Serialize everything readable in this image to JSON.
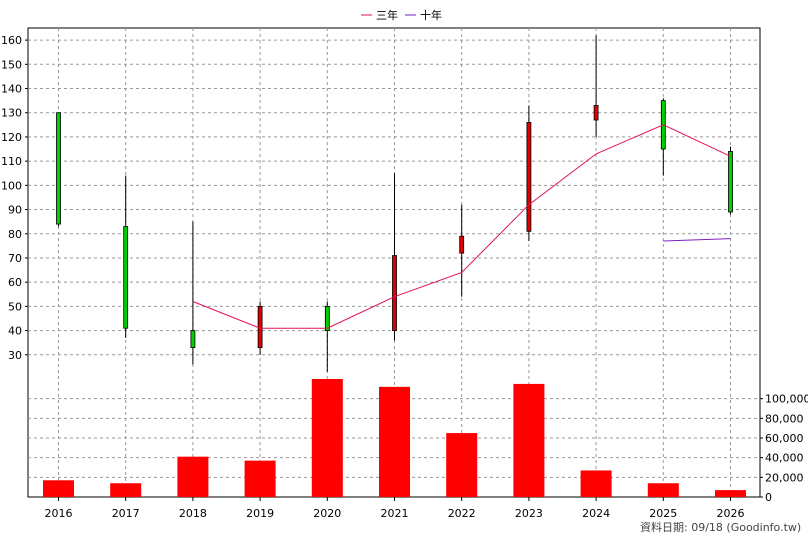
{
  "chart_data": {
    "type": "candlestick+bar",
    "legend": [
      {
        "label": "三年",
        "color": "#e0105a"
      },
      {
        "label": "十年",
        "color": "#7a20c0"
      }
    ],
    "categories": [
      "2016",
      "2017",
      "2018",
      "2019",
      "2020",
      "2021",
      "2022",
      "2023",
      "2024",
      "2025",
      "2026"
    ],
    "candles": [
      {
        "open": 130,
        "close": 84,
        "high": 130,
        "low": 83,
        "color": "#00d000"
      },
      {
        "open": 83,
        "close": 41,
        "high": 104,
        "low": 37,
        "color": "#00d000"
      },
      {
        "open": 40,
        "close": 33,
        "high": 85,
        "low": 26,
        "color": "#00d000"
      },
      {
        "open": 33,
        "close": 50,
        "high": 52,
        "low": 30,
        "color": "#e00000"
      },
      {
        "open": 50,
        "close": 40,
        "high": 52,
        "low": 23,
        "color": "#00d000"
      },
      {
        "open": 40,
        "close": 71,
        "high": 105,
        "low": 36,
        "color": "#e00000"
      },
      {
        "open": 72,
        "close": 79,
        "high": 92,
        "low": 54,
        "color": "#e00000"
      },
      {
        "open": 81,
        "close": 126,
        "high": 133,
        "low": 77,
        "color": "#e00000"
      },
      {
        "open": 127,
        "close": 133,
        "high": 162,
        "low": 120,
        "color": "#e00000"
      },
      {
        "open": 135,
        "close": 115,
        "high": 136,
        "low": 104,
        "color": "#00d000"
      },
      {
        "open": 114,
        "close": 89,
        "high": 116,
        "low": 88,
        "color": "#00d000"
      }
    ],
    "ma3": {
      "name": "三年",
      "start": 2,
      "values": [
        52,
        41,
        41,
        54,
        64,
        92,
        113,
        125,
        112
      ]
    },
    "ma10": {
      "name": "十年",
      "start": 9,
      "values": [
        77,
        78
      ]
    },
    "volume": [
      17000,
      14000,
      41000,
      37000,
      120000,
      112000,
      65000,
      115000,
      27000,
      14000,
      7000
    ],
    "price_axis": {
      "min": 20,
      "max": 165,
      "ticks": [
        30,
        40,
        50,
        60,
        70,
        80,
        90,
        100,
        110,
        120,
        130,
        140,
        150,
        160
      ]
    },
    "volume_axis": {
      "min": 0,
      "max": 120000,
      "ticks": [
        0,
        20000,
        40000,
        60000,
        80000,
        100000
      ],
      "tick_labels": [
        "0",
        "20,000",
        "40,000",
        "60,000",
        "80,000",
        "100,000"
      ]
    },
    "grid": true
  },
  "footer": {
    "text": "資料日期: 09/18  (Goodinfo.tw)"
  }
}
